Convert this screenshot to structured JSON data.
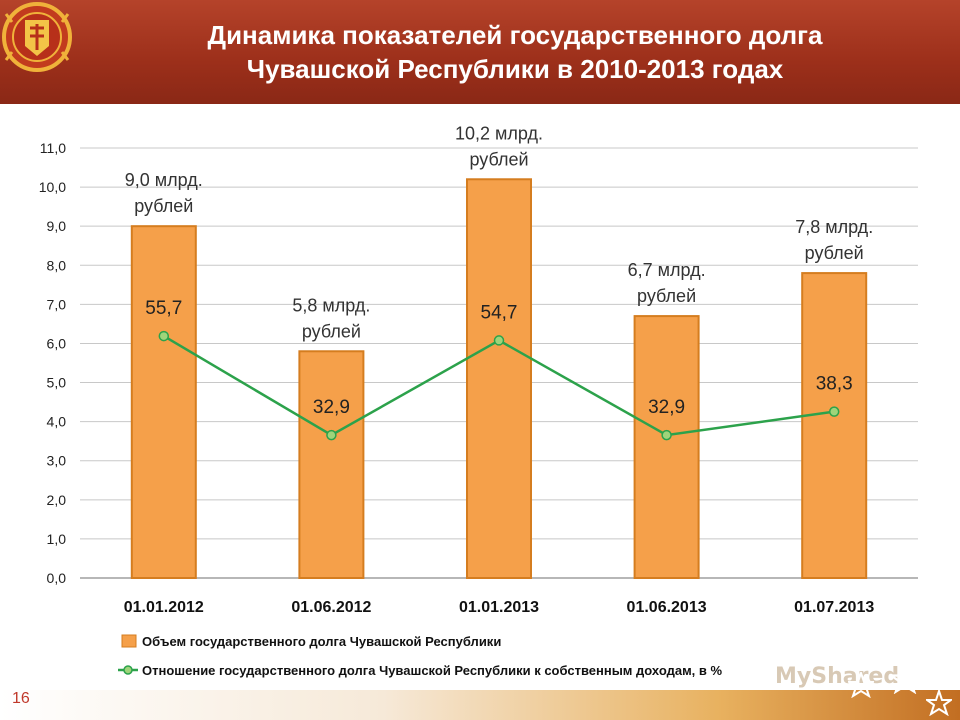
{
  "slide": {
    "title_line1": "Динамика показателей государственного долга",
    "title_line2": "Чувашской Республики в 2010-2013 годах",
    "page_number": "16",
    "watermark": "MyShared"
  },
  "colors": {
    "header": "#9c2f1a",
    "bar_fill": "#f5a04a",
    "bar_stroke": "#d57d1f",
    "line": "#2ca24b",
    "marker_fill": "#9fd47a"
  },
  "chart_data": {
    "type": "bar",
    "categories": [
      "01.01.2012",
      "01.06.2012",
      "01.01.2013",
      "01.06.2013",
      "01.07.2013"
    ],
    "ylim": [
      0,
      11
    ],
    "yticks": [
      "0,0",
      "1,0",
      "2,0",
      "3,0",
      "4,0",
      "5,0",
      "6,0",
      "7,0",
      "8,0",
      "9,0",
      "10,0",
      "11,0"
    ],
    "grid": true,
    "legend_position": "bottom",
    "series": [
      {
        "name": "Объем государственного долга Чувашской Республики",
        "type": "bar",
        "values": [
          9.0,
          5.8,
          10.2,
          6.7,
          7.8
        ],
        "labels": [
          [
            "9,0 млрд.",
            "рублей"
          ],
          [
            "5,8 млрд.",
            "рублей"
          ],
          [
            "10,2 млрд.",
            "рублей"
          ],
          [
            "6,7 млрд.",
            "рублей"
          ],
          [
            "7,8 млрд.",
            "рублей"
          ]
        ]
      },
      {
        "name": "Отношение государственного долга Чувашской Республики к собственным доходам, в %",
        "type": "line",
        "values": [
          55.7,
          32.9,
          54.7,
          32.9,
          38.3
        ],
        "labels": [
          "55,7",
          "32,9",
          "54,7",
          "32,9",
          "38,3"
        ]
      }
    ]
  }
}
